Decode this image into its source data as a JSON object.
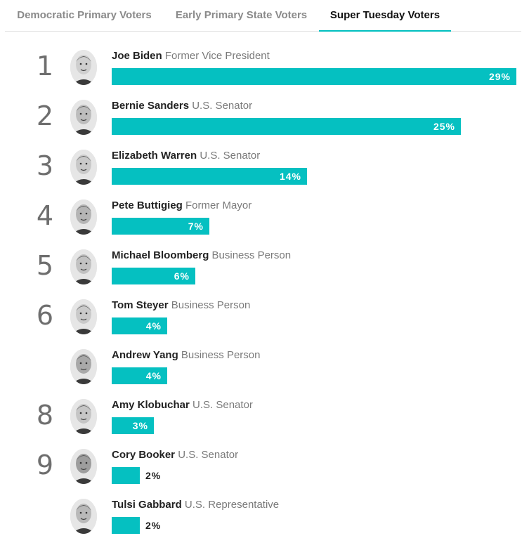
{
  "tabs": [
    {
      "label": "Democratic Primary Voters",
      "active": false
    },
    {
      "label": "Early Primary State Voters",
      "active": false
    },
    {
      "label": "Super Tuesday Voters",
      "active": true
    }
  ],
  "colors": {
    "bar": "#05c0c1",
    "active_tab_underline": "#00bfbf"
  },
  "chart_data": {
    "type": "bar",
    "orientation": "horizontal",
    "value_suffix": "%",
    "xlim": [
      0,
      29
    ],
    "rows": [
      {
        "rank": "1",
        "name": "Joe Biden",
        "role": "Former Vice President",
        "value": 29,
        "label": "29%",
        "icon": "joe-biden-portrait-icon"
      },
      {
        "rank": "2",
        "name": "Bernie Sanders",
        "role": "U.S. Senator",
        "value": 25,
        "label": "25%",
        "icon": "bernie-sanders-portrait-icon"
      },
      {
        "rank": "3",
        "name": "Elizabeth Warren",
        "role": "U.S. Senator",
        "value": 14,
        "label": "14%",
        "icon": "elizabeth-warren-portrait-icon"
      },
      {
        "rank": "4",
        "name": "Pete Buttigieg",
        "role": "Former Mayor",
        "value": 7,
        "label": "7%",
        "icon": "pete-buttigieg-portrait-icon"
      },
      {
        "rank": "5",
        "name": "Michael Bloomberg",
        "role": "Business Person",
        "value": 6,
        "label": "6%",
        "icon": "michael-bloomberg-portrait-icon"
      },
      {
        "rank": "6",
        "name": "Tom Steyer",
        "role": "Business Person",
        "value": 4,
        "label": "4%",
        "icon": "tom-steyer-portrait-icon"
      },
      {
        "rank": "",
        "name": "Andrew Yang",
        "role": "Business Person",
        "value": 4,
        "label": "4%",
        "icon": "andrew-yang-portrait-icon"
      },
      {
        "rank": "8",
        "name": "Amy Klobuchar",
        "role": "U.S. Senator",
        "value": 3,
        "label": "3%",
        "icon": "amy-klobuchar-portrait-icon"
      },
      {
        "rank": "9",
        "name": "Cory Booker",
        "role": "U.S. Senator",
        "value": 2,
        "label": "2%",
        "icon": "cory-booker-portrait-icon"
      },
      {
        "rank": "",
        "name": "Tulsi Gabbard",
        "role": "U.S. Representative",
        "value": 2,
        "label": "2%",
        "icon": "tulsi-gabbard-portrait-icon"
      }
    ]
  }
}
